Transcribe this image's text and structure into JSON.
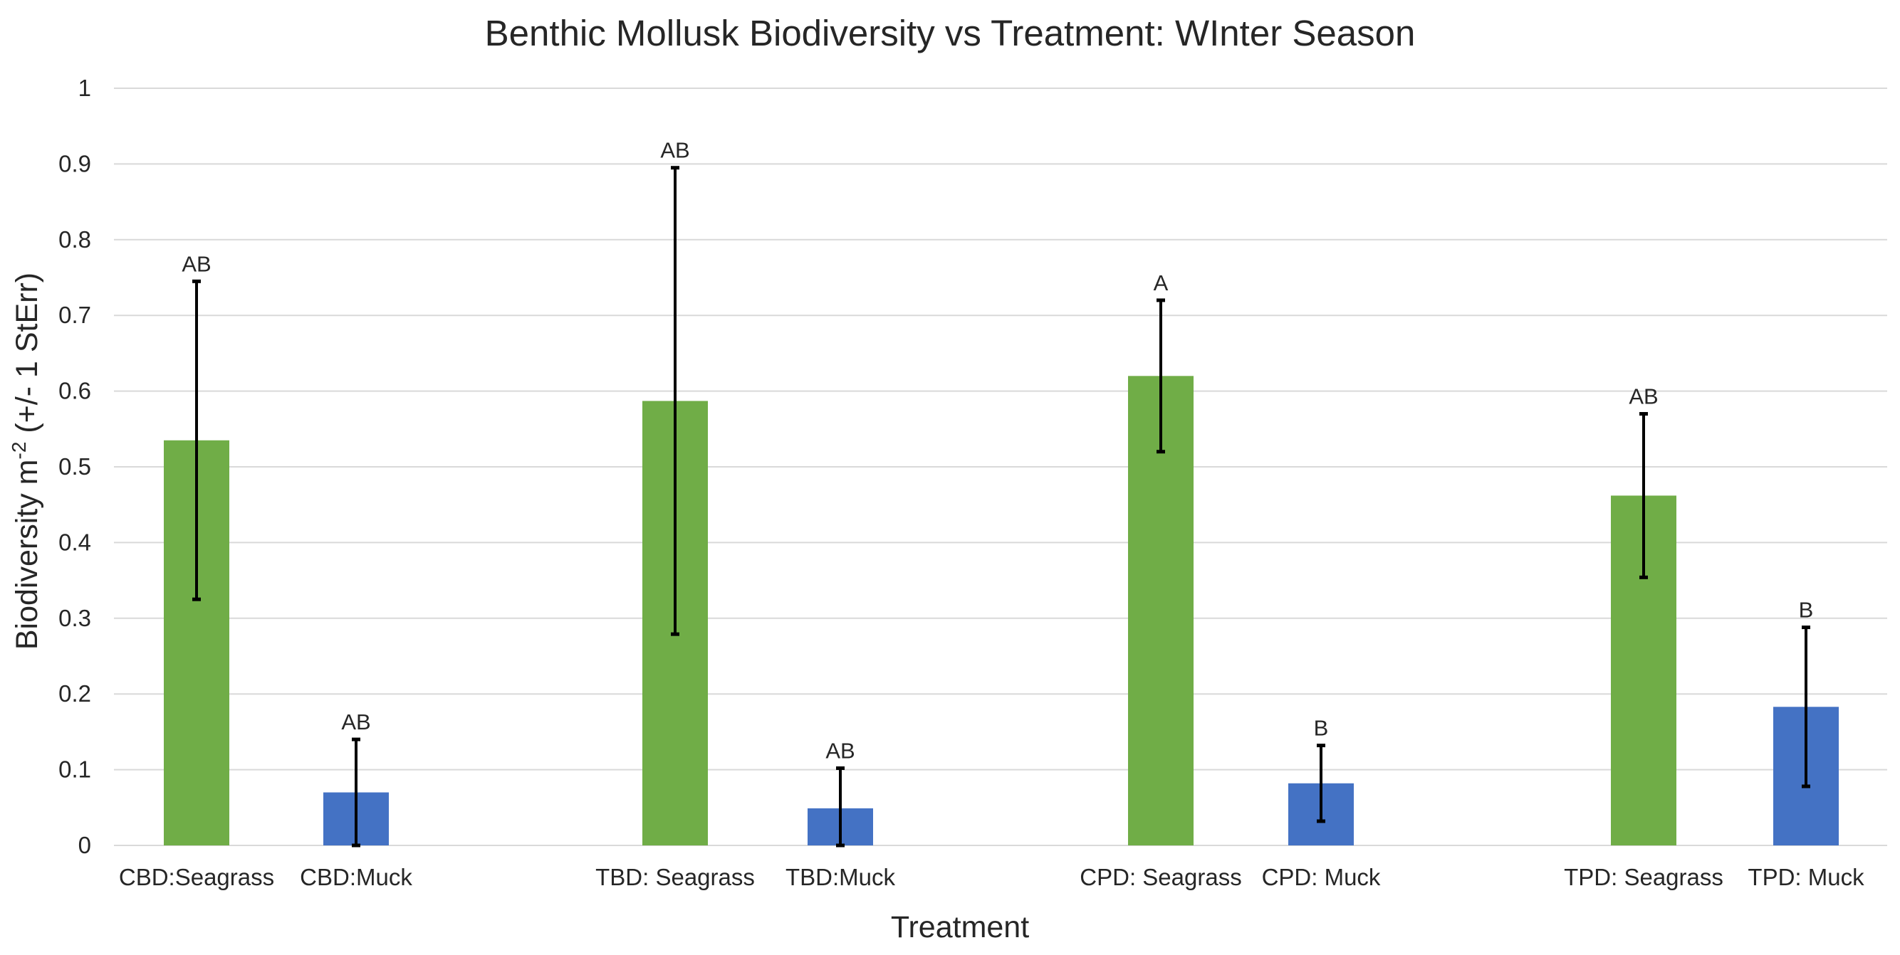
{
  "chart_data": {
    "type": "bar",
    "title": "Benthic Mollusk Biodiversity vs Treatment: WInter Season",
    "xlabel": "Treatment",
    "ylabel": "Biodiversity m",
    "ylabel_superscript": "-2",
    "ylabel_suffix": " (+/- 1 StErr)",
    "ylim": [
      0,
      1
    ],
    "yticks": [
      "0",
      "0.1",
      "0.2",
      "0.3",
      "0.4",
      "0.5",
      "0.6",
      "0.7",
      "0.8",
      "0.9",
      "1"
    ],
    "grid": true,
    "categories": [
      "CBD:Seagrass",
      "CBD:Muck",
      "TBD: Seagrass",
      "TBD:Muck",
      "CPD: Seagrass",
      "CPD: Muck",
      "TPD: Seagrass",
      "TPD: Muck"
    ],
    "values": [
      0.535,
      0.07,
      0.587,
      0.049,
      0.62,
      0.082,
      0.462,
      0.183
    ],
    "errors": [
      0.21,
      0.07,
      0.308,
      0.053,
      0.1,
      0.05,
      0.108,
      0.105
    ],
    "significance_labels": [
      "AB",
      "AB",
      "AB",
      "AB",
      "A",
      "B",
      "AB",
      "B"
    ],
    "bar_colors": [
      "#70ad47",
      "#4472c4",
      "#70ad47",
      "#4472c4",
      "#70ad47",
      "#4472c4",
      "#70ad47",
      "#4472c4"
    ]
  },
  "colors": {
    "seagrass": "#70ad47",
    "muck": "#4472c4",
    "error_bar": "#000000",
    "gridline": "#d9d9d9",
    "text": "#262626"
  }
}
